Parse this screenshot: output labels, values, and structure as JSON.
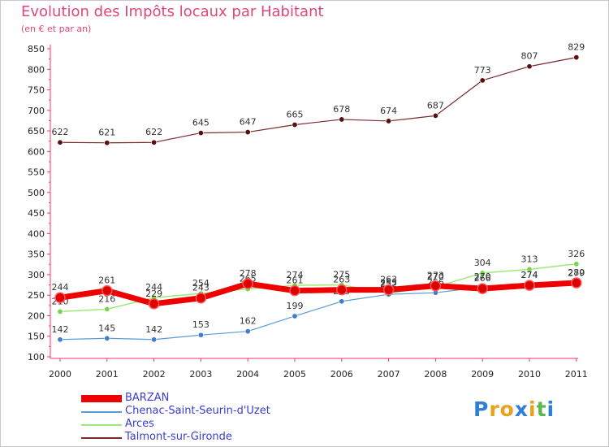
{
  "page": {
    "title": "Evolution des Impôts locaux par Habitant",
    "subtitle": "(en € et par an)",
    "logo": "Proxiti"
  },
  "chart_data": {
    "type": "line",
    "title": "Evolution des Impôts locaux par Habitant",
    "subtitle": "(en € et par an)",
    "xlabel": "",
    "ylabel": "",
    "ylim": [
      100,
      850
    ],
    "yticks": [
      100,
      150,
      200,
      250,
      300,
      350,
      400,
      450,
      500,
      550,
      600,
      650,
      700,
      750,
      800,
      850
    ],
    "categories": [
      "2000",
      "2001",
      "2002",
      "2003",
      "2004",
      "2005",
      "2006",
      "2007",
      "2008",
      "2009",
      "2010",
      "2011"
    ],
    "grid": false,
    "legend_position": "bottom-left",
    "series": [
      {
        "name": "Talmont-sur-Gironde",
        "color": "#7a2a2a",
        "marker": "#5a1010",
        "width": 1.2,
        "values": [
          622,
          621,
          622,
          645,
          647,
          665,
          678,
          674,
          687,
          773,
          807,
          829
        ],
        "labels": [
          "622",
          "621",
          "622",
          "645",
          "647",
          "665",
          "678",
          "674",
          "687",
          "773",
          "807",
          "829"
        ]
      },
      {
        "name": "Arces",
        "color": "#9ee87a",
        "marker": "#77d44a",
        "width": 1.5,
        "values": [
          210,
          216,
          244,
          254,
          265,
          274,
          275,
          255,
          270,
          304,
          313,
          326
        ],
        "labels": [
          "210",
          "216",
          "244",
          "254",
          "265",
          "274",
          "275",
          "255",
          "270",
          "304",
          "313",
          "326"
        ]
      },
      {
        "name": "Chenac-Saint-Seurin-d'Uzet",
        "color": "#5b9bd5",
        "marker": "#3f7fc8",
        "width": 1.2,
        "values": [
          142,
          145,
          142,
          153,
          162,
          199,
          235,
          252,
          256,
          270,
          274,
          279
        ],
        "labels": [
          "142",
          "145",
          "142",
          "153",
          "162",
          "199",
          "235",
          "252",
          "256",
          "270",
          "274",
          "279"
        ]
      },
      {
        "name": "BARZAN",
        "color": "#ee0000",
        "marker": "#dd0000",
        "width": 7,
        "values": [
          244,
          261,
          229,
          243,
          278,
          261,
          263,
          263,
          273,
          266,
          274,
          280
        ],
        "labels": [
          "244",
          "261",
          "229",
          "243",
          "278",
          "261",
          "263",
          "263",
          "273",
          "266",
          "274",
          "280"
        ]
      }
    ]
  },
  "legend": {
    "items": [
      {
        "name": "BARZAN",
        "color": "#ee0000"
      },
      {
        "name": "Chenac-Saint-Seurin-d'Uzet",
        "color": "#5b9bd5"
      },
      {
        "name": "Arces",
        "color": "#9ee87a"
      },
      {
        "name": "Talmont-sur-Gironde",
        "color": "#7a2a2a"
      }
    ]
  }
}
